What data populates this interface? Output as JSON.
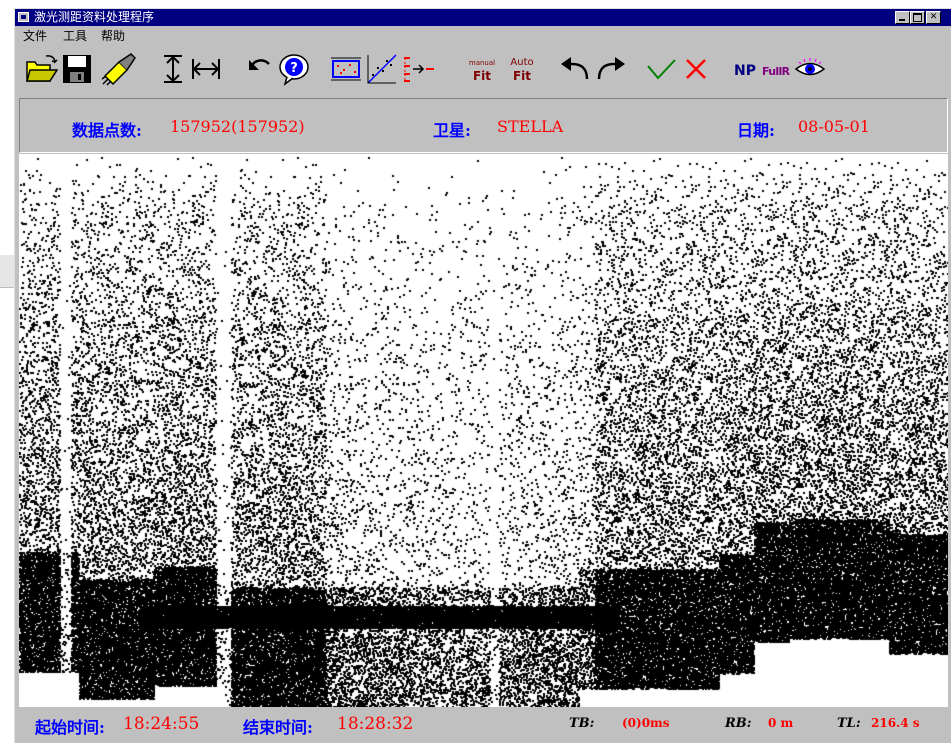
{
  "window": {
    "title": "激光测距资料处理程序"
  },
  "menu": [
    {
      "label": "文件"
    },
    {
      "label": "工具"
    },
    {
      "label": "帮助"
    }
  ],
  "toolbar": {
    "manual_fit": {
      "top": "manual",
      "bottom": "Fit"
    },
    "auto_fit": {
      "top": "Auto",
      "bottom": "Fit"
    },
    "np_label": "NP",
    "fullr_label": "FullR"
  },
  "info": {
    "points_label": "数据点数:",
    "points_value": "157952(157952)",
    "satellite_label": "卫星:",
    "satellite_value": "STELLA",
    "date_label": "日期:",
    "date_value": "08-05-01"
  },
  "status": {
    "start_label": "起始时间:",
    "start_value": "18:24:55",
    "end_label": "结束时间:",
    "end_value": "18:28:32",
    "tb_label": "TB:",
    "tb_value": "(0)0ms",
    "rb_label": "RB:",
    "rb_value": "0 m",
    "tl_label": "TL:",
    "tl_value": "216.4 s"
  },
  "colors": {
    "title_bar": "#000080",
    "label_blue": "#0000ff",
    "value_red": "#ff0000",
    "ok_green": "#008000",
    "cancel_red": "#ff0000"
  }
}
